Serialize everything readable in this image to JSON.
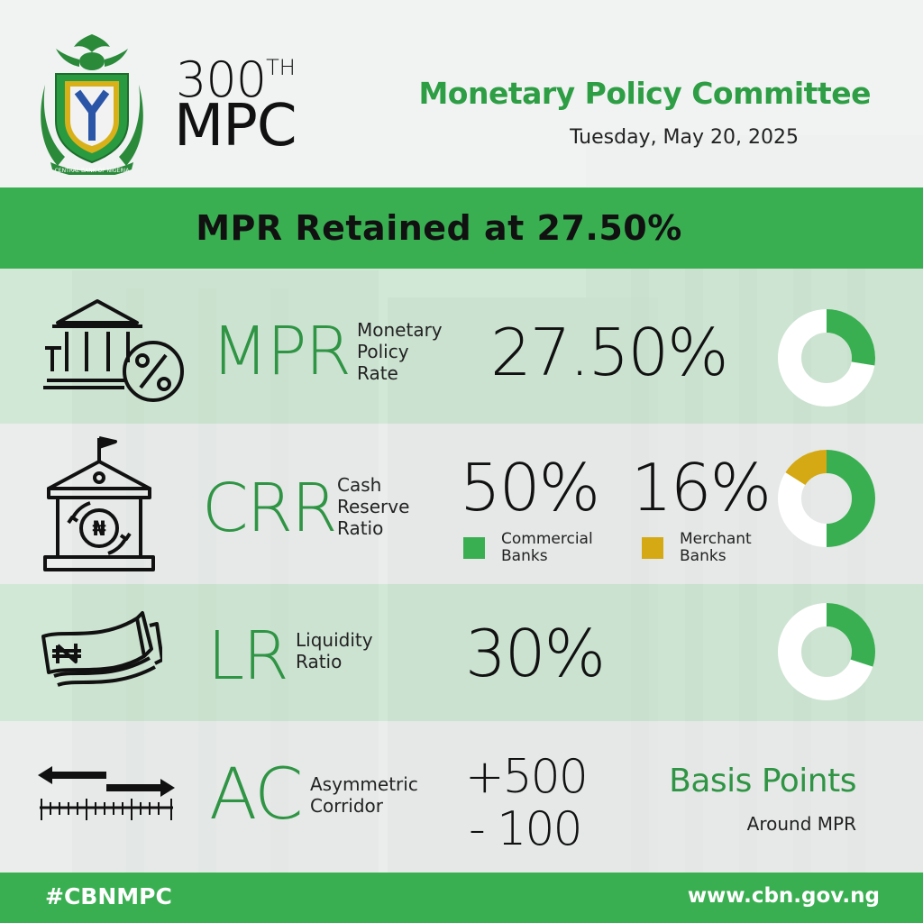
{
  "header": {
    "edition_number": "300",
    "edition_suffix": "TH",
    "edition_word": "MPC",
    "committee": "Monetary Policy Committee",
    "date": "Tuesday, May 20, 2025"
  },
  "banner": {
    "headline": "MPR Retained at 27.50%"
  },
  "mpr": {
    "abbr": "MPR",
    "desc": [
      "Monetary",
      "Policy",
      "Rate"
    ],
    "value": "27.50%",
    "donut_fraction": 0.275,
    "icon": "bank-percent-icon"
  },
  "crr": {
    "abbr": "CRR",
    "desc": [
      "Cash",
      "Reserve",
      "Ratio"
    ],
    "commercial_value": "50%",
    "commercial_label": [
      "Commercial",
      "Banks"
    ],
    "merchant_value": "16%",
    "merchant_label": [
      "Merchant",
      "Banks"
    ],
    "commercial_fraction": 0.5,
    "merchant_fraction": 0.16,
    "icon": "bank-naira-icon"
  },
  "lr": {
    "abbr": "LR",
    "desc": [
      "Liquidity",
      "Ratio"
    ],
    "value": "30%",
    "donut_fraction": 0.3,
    "icon": "naira-notes-icon"
  },
  "ac": {
    "abbr": "AC",
    "desc": [
      "Asymmetric",
      "Corridor"
    ],
    "upper": "+500",
    "lower": "- 100",
    "unit": "Basis Points",
    "unit_note": "Around MPR",
    "icon": "corridor-arrows-icon"
  },
  "footer": {
    "hashtag": "#CBNMPC",
    "website": "www.cbn.gov.ng"
  },
  "colors": {
    "green": "#3aaf52",
    "dark_green": "#2f9444",
    "gold": "#d4a914",
    "white": "#ffffff"
  }
}
